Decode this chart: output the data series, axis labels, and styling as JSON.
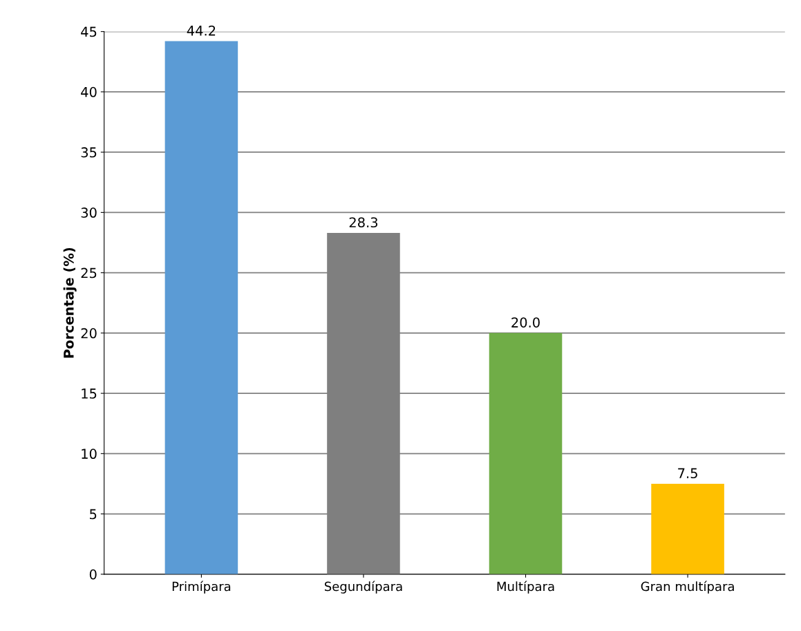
{
  "chart_data": {
    "type": "bar",
    "ylabel": "Porcentaje (%)",
    "categories": [
      "Primípara",
      "Segundípara",
      "Multípara",
      "Gran multípara"
    ],
    "values": [
      44.2,
      28.3,
      20.0,
      7.5
    ],
    "colors": [
      "#5b9bd5",
      "#7f7f7f",
      "#70ad47",
      "#ffc000"
    ],
    "value_labels": [
      "44.2",
      "28.3",
      "20.0",
      "7.5"
    ],
    "ylim": [
      0,
      45
    ],
    "yticks": [
      0,
      5,
      10,
      15,
      20,
      25,
      30,
      35,
      40,
      45
    ],
    "grid": "y",
    "legend": false
  }
}
